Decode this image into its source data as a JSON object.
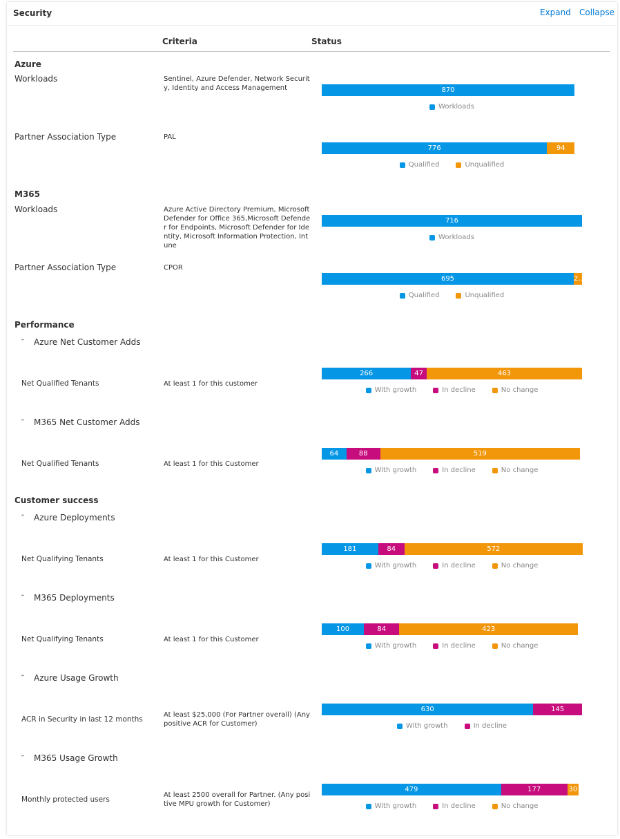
{
  "header": {
    "title": "Security",
    "expand_label": "Expand",
    "collapse_label": "Collapse"
  },
  "columns": {
    "criteria": "Criteria",
    "status": "Status"
  },
  "colors": {
    "blue": "#0696e6",
    "magenta": "#c70c7d",
    "orange": "#f2960a",
    "link": "#0078d4"
  },
  "sections": {
    "azure": {
      "title": "Azure",
      "workloads": {
        "label": "Workloads",
        "criteria": "Sentinel, Azure Defender, Network Security, Identity and Access Management",
        "chart": {
          "values": [
            870
          ],
          "legend": [
            "Workloads"
          ]
        }
      },
      "pat": {
        "label": "Partner Association Type",
        "criteria": "PAL",
        "chart": {
          "values": [
            776,
            94
          ],
          "legend": [
            "Qualified",
            "Unqualified"
          ]
        }
      }
    },
    "m365": {
      "title": "M365",
      "workloads": {
        "label": "Workloads",
        "criteria": "Azure Active Directory Premium, Microsoft Defender for Office 365,Microsoft Defender for Endpoints, Microsoft Defender for Identity, Microsoft Information Protection, Intune",
        "chart": {
          "values": [
            716
          ],
          "legend": [
            "Workloads"
          ]
        }
      },
      "pat": {
        "label": "Partner Association Type",
        "criteria": "CPOR",
        "chart": {
          "values": [
            695,
            2
          ],
          "value_labels": [
            "695",
            "2..."
          ],
          "legend": [
            "Qualified",
            "Unqualified"
          ]
        }
      }
    },
    "performance": {
      "title": "Performance",
      "azure_nca": {
        "group": "Azure Net Customer Adds",
        "label": "Net Qualified Tenants",
        "criteria": "At least 1 for this customer",
        "chart": {
          "values": [
            266,
            47,
            463
          ],
          "legend": [
            "With growth",
            "In decline",
            "No change"
          ]
        }
      },
      "m365_nca": {
        "group": "M365 Net Customer Adds",
        "label": "Net Qualified Tenants",
        "criteria": "At least 1 for this Customer",
        "chart": {
          "values": [
            64,
            88,
            519
          ],
          "legend": [
            "With growth",
            "In decline",
            "No change"
          ]
        }
      }
    },
    "customer_success": {
      "title": "Customer success",
      "azure_dep": {
        "group": "Azure Deployments",
        "label": "Net Qualifying Tenants",
        "criteria": "At least 1 for this Customer",
        "chart": {
          "values": [
            181,
            84,
            572
          ],
          "legend": [
            "With growth",
            "In decline",
            "No change"
          ]
        }
      },
      "m365_dep": {
        "group": "M365 Deployments",
        "label": "Net Qualifying Tenants",
        "criteria": "At least 1 for this Customer",
        "chart": {
          "values": [
            100,
            84,
            423
          ],
          "legend": [
            "With growth",
            "In decline",
            "No change"
          ]
        }
      },
      "azure_usage": {
        "group": "Azure Usage Growth",
        "label": "ACR in Security in last 12 months",
        "criteria": "At least $25,000 (For Partner overall) (Any positive ACR for Customer)",
        "chart": {
          "values": [
            630,
            145
          ],
          "legend": [
            "With growth",
            "In decline"
          ]
        }
      },
      "m365_usage": {
        "group": "M365 Usage Growth",
        "label": "Monthly protected users",
        "criteria": "At least 2500 overall for Partner. (Any positive MPU growth for Customer)",
        "chart": {
          "values": [
            479,
            177,
            30
          ],
          "legend": [
            "With growth",
            "In decline",
            "No change"
          ]
        }
      }
    }
  }
}
